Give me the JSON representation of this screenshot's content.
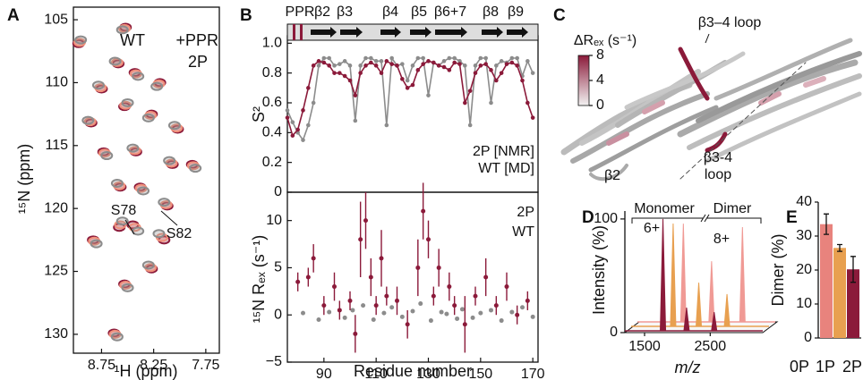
{
  "chart_data": [
    {
      "type": "scatter",
      "panel": "A",
      "xlabel": "¹H (ppm)",
      "ylabel": "¹⁵N (ppm)",
      "xlim": [
        9.02,
        7.62
      ],
      "ylim": [
        131.5,
        104
      ],
      "xticks": [
        8.75,
        8.25,
        7.75
      ],
      "yticks": [
        105,
        110,
        115,
        120,
        125,
        130
      ],
      "annotations": [
        "S78",
        "S82"
      ],
      "series": [
        {
          "name": "2P",
          "color": "#8b1a3a",
          "x": [
            8.52,
            8.97,
            8.59,
            8.43,
            8.75,
            8.19,
            8.53,
            8.85,
            8.27,
            8.02,
            8.42,
            8.73,
            8.07,
            7.88,
            8.57,
            8.38,
            8.12,
            8.58,
            8.45,
            8.15,
            8.83,
            8.27,
            8.53,
            8.63
          ],
          "values": [
            105.6,
            106.9,
            108.5,
            109.2,
            110.5,
            110.0,
            111.9,
            113.2,
            112.5,
            113.7,
            115.5,
            115.5,
            116.5,
            116.5,
            118.3,
            118.3,
            119.8,
            121.5,
            121.3,
            122.5,
            122.5,
            124.8,
            126.0,
            129.9
          ]
        },
        {
          "name": "+PPR",
          "color": "#f0907a",
          "x": [
            8.53,
            8.96,
            8.6,
            8.42,
            8.76,
            8.2,
            8.52,
            8.86,
            8.28,
            8.03,
            8.43,
            8.72,
            8.08,
            7.87,
            8.58,
            8.37,
            8.13,
            8.57,
            8.43,
            8.17,
            8.82,
            8.28,
            8.52,
            8.62
          ],
          "values": [
            105.7,
            106.8,
            108.4,
            109.3,
            110.4,
            110.1,
            111.8,
            113.1,
            112.6,
            113.6,
            115.4,
            115.6,
            116.4,
            116.6,
            118.2,
            118.4,
            119.7,
            121.3,
            121.5,
            122.3,
            122.6,
            124.7,
            126.1,
            130.0
          ]
        },
        {
          "name": "WT",
          "color": "#8c8c8c",
          "x": [
            8.55,
            8.95,
            8.62,
            8.4,
            8.78,
            8.22,
            8.5,
            8.88,
            8.3,
            8.05,
            8.45,
            8.7,
            8.1,
            7.85,
            8.6,
            8.35,
            8.15,
            8.55,
            8.4,
            8.2,
            8.8,
            8.3,
            8.5,
            8.6
          ],
          "values": [
            105.8,
            106.6,
            108.3,
            109.5,
            110.2,
            110.3,
            111.6,
            113.0,
            112.8,
            113.4,
            115.2,
            115.8,
            116.2,
            116.8,
            118.0,
            118.6,
            119.5,
            121.0,
            121.8,
            122.0,
            122.8,
            124.5,
            126.3,
            130.2
          ]
        }
      ]
    },
    {
      "type": "line",
      "panel": "B",
      "ylabel": "S²",
      "xlim": [
        76,
        172
      ],
      "ylim": [
        0,
        1.05
      ],
      "yticks": [
        0,
        0.2,
        0.4,
        0.6,
        0.8,
        {
          "value": 1,
          "label": "1.0"
        }
      ],
      "structure": [
        "PPR",
        "β2",
        "β3",
        "β4",
        "β5",
        "β6+7",
        "β8",
        "β9"
      ],
      "x": [
        76,
        78,
        80,
        82,
        84,
        86,
        88,
        90,
        92,
        94,
        96,
        98,
        100,
        102,
        104,
        106,
        108,
        110,
        112,
        114,
        116,
        118,
        120,
        122,
        124,
        126,
        128,
        130,
        132,
        134,
        136,
        138,
        140,
        142,
        144,
        146,
        148,
        150,
        152,
        154,
        156,
        158,
        160,
        162,
        164,
        166,
        168,
        170
      ],
      "series": [
        {
          "name": "WT [MD]",
          "color": "#8c8c8c",
          "values": [
            0.55,
            0.47,
            0.4,
            0.35,
            0.45,
            0.6,
            0.85,
            0.9,
            0.9,
            0.85,
            0.86,
            0.88,
            0.85,
            0.48,
            0.85,
            0.9,
            0.9,
            0.88,
            0.88,
            0.45,
            0.9,
            0.85,
            0.86,
            0.75,
            0.85,
            0.9,
            0.9,
            0.65,
            0.87,
            0.85,
            0.88,
            0.9,
            0.9,
            0.88,
            0.85,
            0.45,
            0.85,
            0.9,
            0.9,
            0.6,
            0.85,
            0.88,
            0.87,
            0.9,
            0.9,
            0.78,
            0.88,
            0.8
          ]
        },
        {
          "name": "2P [NMR]",
          "color": "#8b1a3a",
          "values": [
            0.5,
            0.38,
            0.42,
            0.55,
            0.7,
            0.85,
            0.88,
            0.87,
            0.85,
            0.8,
            0.8,
            0.78,
            0.75,
            0.65,
            0.8,
            0.85,
            0.87,
            0.85,
            0.8,
            0.88,
            0.86,
            0.85,
            0.76,
            0.7,
            0.72,
            0.82,
            0.86,
            0.88,
            0.87,
            0.85,
            0.84,
            0.82,
            0.87,
            0.86,
            0.6,
            0.68,
            0.8,
            0.85,
            0.86,
            0.82,
            0.75,
            0.8,
            0.86,
            0.87,
            0.85,
            0.75,
            0.6,
            0.5
          ]
        }
      ]
    },
    {
      "type": "errorbar",
      "ylabel": "¹⁵N Rₑₓ (s⁻¹)",
      "xlabel": "Residue number",
      "xlim": [
        76,
        172
      ],
      "ylim": [
        -5,
        13
      ],
      "xticks": [
        90,
        110,
        130,
        150,
        170
      ],
      "yticks": [
        {
          "value": -5,
          "label": "−5"
        },
        0,
        5,
        10
      ],
      "series": [
        {
          "name": "WT",
          "color": "#8c8c8c",
          "x": [
            82,
            88,
            92,
            98,
            101,
            105,
            109,
            113,
            116,
            120,
            124,
            127,
            131,
            135,
            137,
            141,
            143,
            147,
            150,
            154,
            158,
            162,
            166,
            170
          ],
          "values": [
            0.2,
            -0.5,
            0.3,
            -0.3,
            0.5,
            1,
            -0.5,
            0.2,
            0.8,
            -0.2,
            0.4,
            1.2,
            -0.6,
            0.3,
            0.1,
            -0.4,
            0.6,
            -0.3,
            0.2,
            0.5,
            -0.6,
            0.3,
            0.8,
            -0.2
          ]
        },
        {
          "name": "2P",
          "color": "#8b1a3a",
          "x": [
            80,
            84,
            86,
            90,
            94,
            96,
            100,
            102,
            104,
            106,
            108,
            110,
            112,
            114,
            118,
            122,
            126,
            128,
            130,
            132,
            134,
            138,
            140,
            144,
            148,
            152,
            156,
            160,
            164,
            168
          ],
          "values": [
            3.5,
            4,
            6,
            1,
            3,
            0.5,
            1.5,
            -2,
            8,
            10,
            4,
            1,
            6,
            2,
            1.5,
            -1,
            5,
            11,
            8,
            2,
            5,
            3,
            1,
            -1,
            2,
            4,
            1,
            3,
            0,
            1.5
          ],
          "errors": [
            1,
            1,
            1.5,
            1,
            1.5,
            1,
            1,
            2,
            4,
            3,
            2,
            1,
            3,
            1,
            1.5,
            1.5,
            3,
            3,
            2,
            1,
            2,
            1.5,
            1,
            3,
            1,
            2,
            1,
            1.5,
            1,
            1
          ]
        }
      ]
    },
    {
      "type": "image",
      "panel": "C",
      "annotations": [
        "β3–4 loop",
        "β3-4",
        "loop",
        "β2"
      ],
      "colorbar": {
        "label": "ΔRₑₓ (s⁻¹)",
        "lim": [
          0,
          8
        ],
        "ticks": [
          0,
          4,
          8
        ],
        "colors": [
          "#f2f2f2",
          "#8b1a3a"
        ]
      }
    },
    {
      "type": "spectrum",
      "panel": "D",
      "ylabel": "Intensity (%)",
      "xlabel": "m/z",
      "xlim": [
        1200,
        3300
      ],
      "ylim": [
        0,
        107
      ],
      "xticks": [
        1500,
        2500
      ],
      "yticks": [
        0,
        100
      ],
      "annotations": [
        "Monomer",
        "Dimer",
        "6+",
        "8+"
      ],
      "series": [
        {
          "name": "0P",
          "color": "#f09a95",
          "x": [
            1900,
            2330,
            2800
          ],
          "values": [
            88,
            55,
            85
          ]
        },
        {
          "name": "1P",
          "color": "#e8a050",
          "x": [
            1840,
            2230,
            2660
          ],
          "values": [
            92,
            40,
            30
          ]
        },
        {
          "name": "2P",
          "color": "#8b1a3a",
          "x": [
            1780,
            2140,
            2560
          ],
          "values": [
            100,
            22,
            18
          ]
        }
      ]
    },
    {
      "type": "bar",
      "panel": "E",
      "ylabel": "Dimer (%)",
      "ylim": [
        0,
        40
      ],
      "yticks": [
        0,
        10,
        20,
        30,
        40
      ],
      "categories": [
        "0P",
        "1P",
        "2P"
      ],
      "values": [
        33.5,
        26.5,
        20.2
      ],
      "errors": [
        3,
        1,
        3.8
      ],
      "colors": [
        "#e8837d",
        "#e8a050",
        "#8b1a3a"
      ]
    }
  ]
}
